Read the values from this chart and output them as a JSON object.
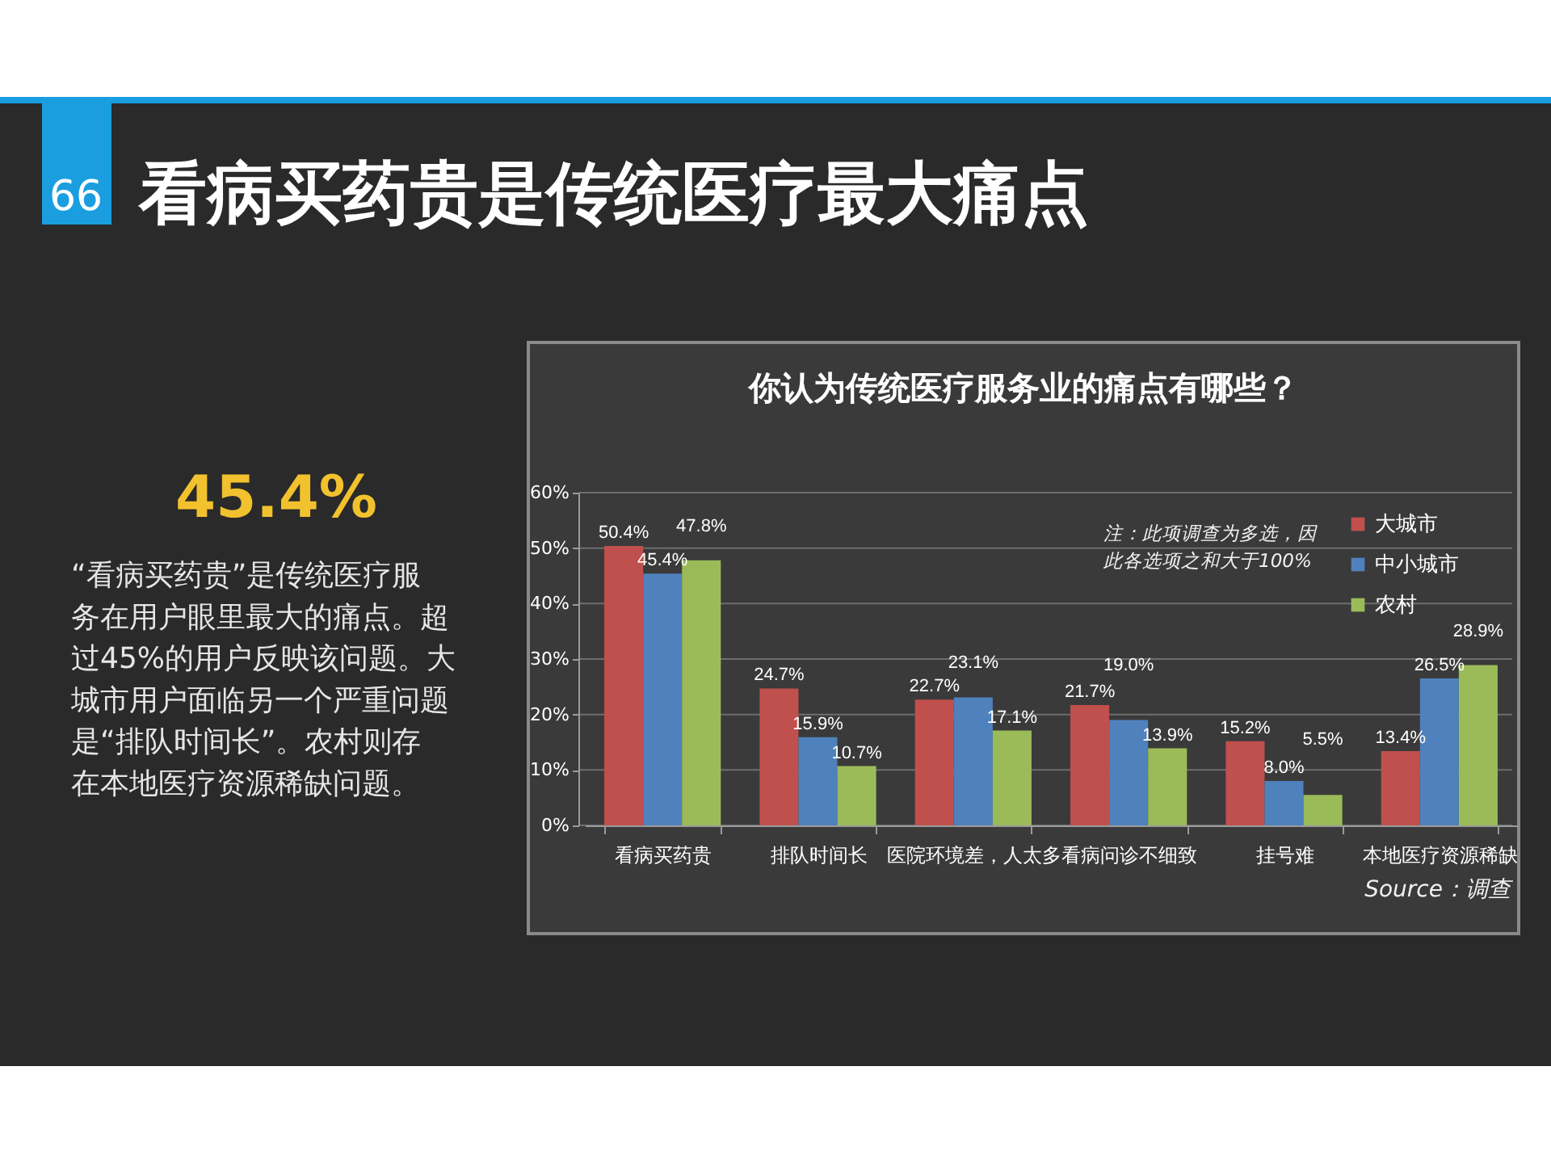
{
  "chart_data": [
    {
      "type": "other",
      "title": "看病买药贵是传统医疗最大痛点",
      "annotations": [
        "66",
        "45.4%",
        "“看病买药贵”是传统医疗服",
        "务在用户眼里最大的痛点。超",
        "过45%的用户反映该问题。大",
        "城市用户面临另一个严重问题",
        "是“排队时间长”。农村则存",
        "在本地医疗资源稀缺问题。"
      ]
    },
    {
      "type": "bar",
      "title": "你认为传统医疗服务业的痛点有哪些？",
      "categories": [
        "看病买药贵",
        "排队时间长",
        "医院环境差，人太多",
        "看病问诊不细致",
        "挂号难",
        "本地医疗资源稀缺"
      ],
      "series": [
        {
          "name": "大城市",
          "color": "#c0504d",
          "values": [
            50.4,
            24.7,
            22.7,
            21.7,
            15.2,
            13.4
          ],
          "value_labels": [
            "50.4%",
            "24.7%",
            "22.7%",
            "21.7%",
            "15.2%",
            "13.4%"
          ]
        },
        {
          "name": "中小城市",
          "color": "#4f81bd",
          "values": [
            45.4,
            15.9,
            23.1,
            19.0,
            8.0,
            26.5
          ],
          "value_labels": [
            "45.4%",
            "15.9%",
            "23.1%",
            "19.0%",
            "8.0%",
            "26.5%"
          ]
        },
        {
          "name": "农村",
          "color": "#9bbb59",
          "values": [
            47.8,
            10.7,
            17.1,
            13.9,
            5.5,
            28.9
          ],
          "value_labels": [
            "47.8%",
            "10.7%",
            "17.1%",
            "13.9%",
            "5.5%",
            "28.9%"
          ]
        }
      ],
      "ylim": [
        0,
        60
      ],
      "yticks": [
        {
          "value": 0,
          "label": "0%"
        },
        {
          "value": 10,
          "label": "10%"
        },
        {
          "value": 20,
          "label": "20%"
        },
        {
          "value": 30,
          "label": "30%"
        },
        {
          "value": 40,
          "label": "40%"
        },
        {
          "value": 50,
          "label": "50%"
        },
        {
          "value": 60,
          "label": "60%"
        }
      ],
      "grid": "y",
      "legend": "top right",
      "annotations": [
        "注：此项调查为多选，因",
        "此各选项之和大于100%",
        "Source：调查"
      ]
    }
  ]
}
